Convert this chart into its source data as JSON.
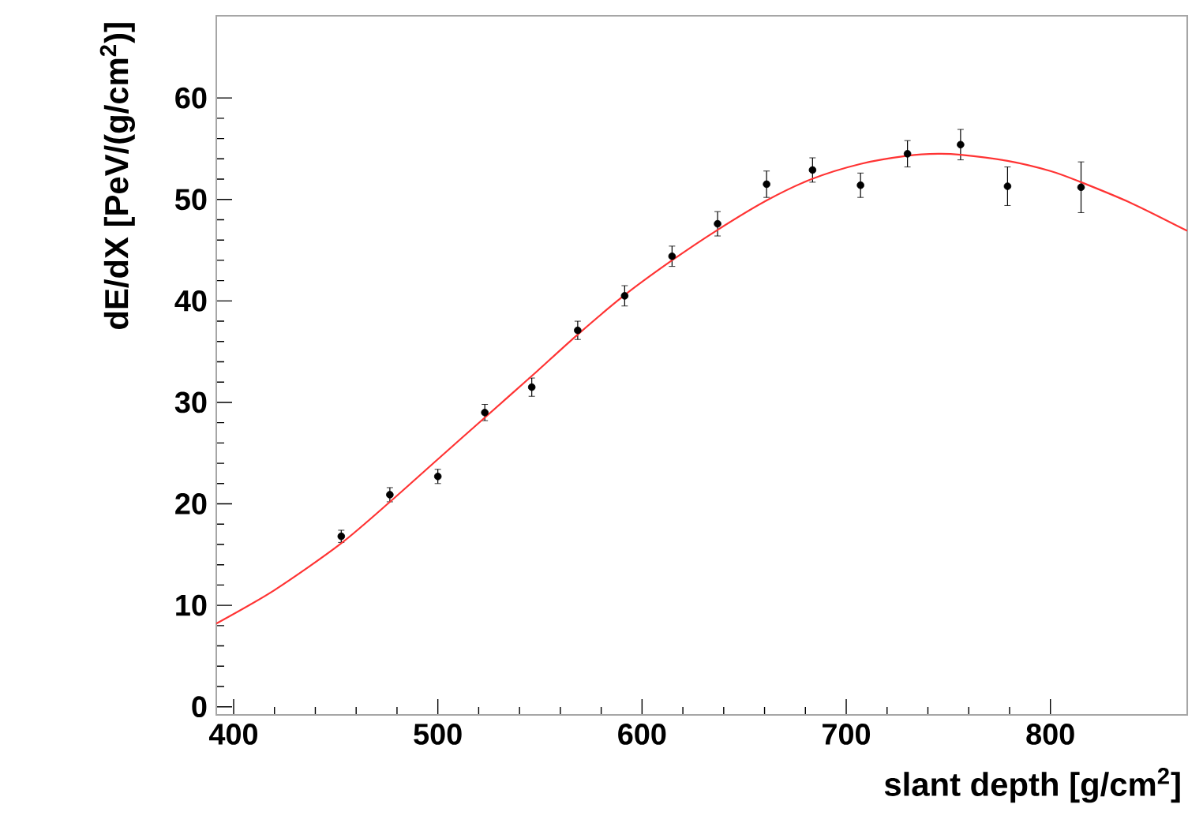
{
  "chart_data": {
    "type": "scatter",
    "xlabel": "slant depth [g/cm$^{2}$]",
    "ylabel": "dE/dX [PeV/(g/cm$^{2}$)]",
    "marker": "circle",
    "xlim": [
      391.5,
      867
    ],
    "ylim": [
      -0.8,
      68.1
    ],
    "xticks": [
      400,
      500,
      600,
      700,
      800
    ],
    "yticks": [
      0,
      10,
      20,
      30,
      40,
      50,
      60
    ],
    "series": [
      {
        "color": "#000000",
        "x": [
          452.7,
          476.5,
          500,
          523,
          546,
          568.5,
          591.5,
          614.7,
          637,
          661,
          683.5,
          707,
          730,
          756,
          779,
          815
        ],
        "values": [
          16.8,
          20.9,
          22.7,
          29.0,
          31.5,
          37.1,
          40.5,
          44.4,
          47.6,
          51.5,
          52.9,
          51.4,
          54.5,
          55.4,
          51.3,
          51.2
        ],
        "errors": [
          0.6,
          0.7,
          0.7,
          0.8,
          0.9,
          0.9,
          1.0,
          1.0,
          1.2,
          1.3,
          1.2,
          1.2,
          1.3,
          1.5,
          1.9,
          2.5
        ]
      },
      {
        "type": "line",
        "color": "#ff3333",
        "marker": "none",
        "x": [
          391.5,
          420,
          452,
          476,
          500,
          523,
          546,
          568,
          591,
          614,
          637,
          661,
          683,
          707,
          730,
          745,
          756,
          779,
          800,
          815,
          840,
          867
        ],
        "values": [
          8.2,
          11.5,
          16.0,
          20.1,
          24.4,
          28.5,
          32.6,
          36.6,
          40.5,
          43.9,
          47.0,
          49.9,
          52.0,
          53.5,
          54.3,
          54.5,
          54.4,
          53.8,
          52.8,
          51.7,
          49.6,
          46.9
        ]
      }
    ]
  }
}
